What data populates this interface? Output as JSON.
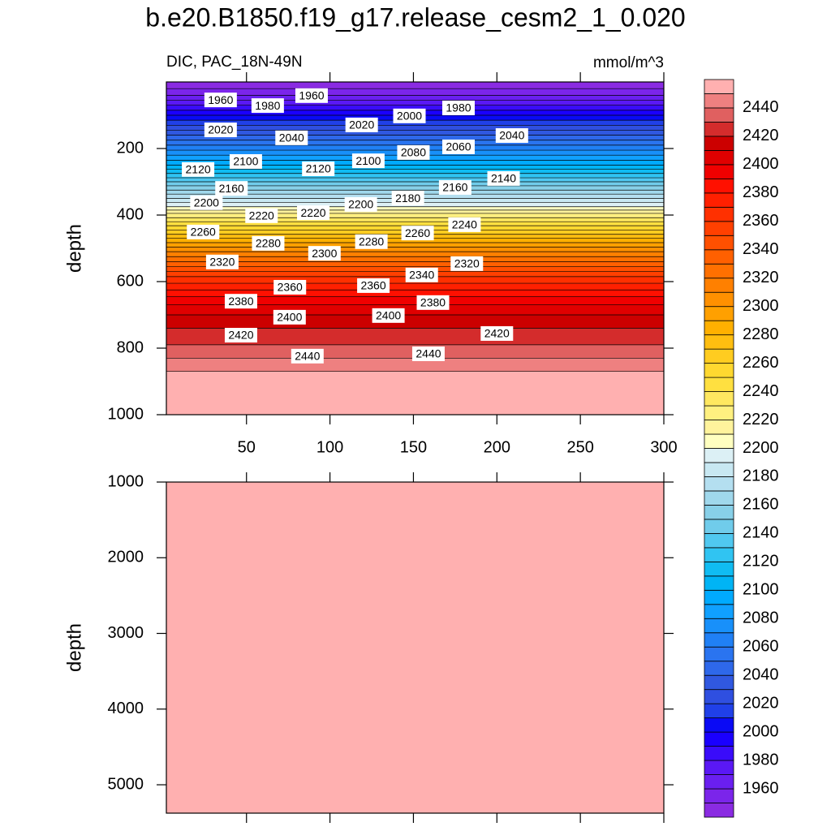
{
  "chart_data": {
    "type": "contour",
    "title": "b.e20.B1850.f19_g17.release_cesm2_1_0.020",
    "subtitle": "DIC, PAC_18N-49N",
    "units": "mmol/m^3",
    "xlim": [
      2,
      300
    ],
    "xticks": [
      50,
      100,
      150,
      200,
      250,
      300
    ],
    "levels": [
      1950,
      1960,
      1970,
      1980,
      1990,
      2000,
      2010,
      2020,
      2030,
      2040,
      2050,
      2060,
      2070,
      2080,
      2090,
      2100,
      2110,
      2120,
      2130,
      2140,
      2150,
      2160,
      2170,
      2180,
      2190,
      2200,
      2210,
      2220,
      2230,
      2240,
      2250,
      2260,
      2270,
      2280,
      2290,
      2300,
      2310,
      2320,
      2330,
      2340,
      2350,
      2360,
      2370,
      2380,
      2390,
      2400,
      2410,
      2420,
      2430,
      2440,
      2450
    ],
    "colors": [
      "#8a2be2",
      "#7b25ea",
      "#6a1ff0",
      "#5a18f5",
      "#3a0cfa",
      "#1a00ff",
      "#0a0af5",
      "#2040e8",
      "#2f4fe0",
      "#3058e0",
      "#2e68ea",
      "#2a74f0",
      "#2080f5",
      "#1890fa",
      "#10a0ff",
      "#00aaff",
      "#00b4f5",
      "#10bcf2",
      "#30c4f2",
      "#50c8f0",
      "#70cceb",
      "#88d0e8",
      "#a0d8ec",
      "#b4dff0",
      "#c8e8f2",
      "#dcf0f5",
      "#ffffc0",
      "#fff39c",
      "#fff080",
      "#ffe860",
      "#ffe040",
      "#ffd830",
      "#ffcc20",
      "#ffbe10",
      "#ffb000",
      "#ffa000",
      "#ff9000",
      "#ff8000",
      "#ff7000",
      "#ff6000",
      "#ff5000",
      "#ff4000",
      "#ff3000",
      "#ff2000",
      "#ff1000",
      "#f00000",
      "#e00000",
      "#cc0000",
      "#d42c2c",
      "#e06060",
      "#ee8080",
      "#ffb0b0"
    ],
    "colorbar": {
      "lim": [
        1940,
        2460
      ],
      "ticks": [
        1960,
        1980,
        2000,
        2020,
        2040,
        2060,
        2080,
        2100,
        2120,
        2140,
        2160,
        2180,
        2200,
        2220,
        2240,
        2260,
        2280,
        2300,
        2320,
        2340,
        2360,
        2380,
        2400,
        2420,
        2440
      ]
    },
    "panels": [
      {
        "ylabel": "depth",
        "ylim": [
          0,
          1000
        ],
        "yticks": [
          200,
          400,
          600,
          800,
          1000
        ],
        "level_depths": [
          20,
          40,
          55,
          70,
          85,
          100,
          115,
          130,
          145,
          160,
          175,
          190,
          205,
          220,
          235,
          250,
          262,
          275,
          288,
          300,
          312,
          325,
          337,
          350,
          362,
          375,
          385,
          395,
          408,
          420,
          432,
          445,
          458,
          470,
          483,
          496,
          510,
          525,
          540,
          555,
          570,
          585,
          605,
          625,
          645,
          670,
          700,
          740,
          790,
          830,
          870
        ],
        "contour_labels": [
          {
            "level": 1960,
            "x": 34.5,
            "depth": 54
          },
          {
            "level": 1980,
            "x": 62.7,
            "depth": 71
          },
          {
            "level": 1960,
            "x": 89,
            "depth": 41
          },
          {
            "level": 2020,
            "x": 34.5,
            "depth": 144
          },
          {
            "level": 2040,
            "x": 77,
            "depth": 168
          },
          {
            "level": 2020,
            "x": 119,
            "depth": 129
          },
          {
            "level": 2000,
            "x": 147.6,
            "depth": 102
          },
          {
            "level": 1980,
            "x": 177,
            "depth": 78
          },
          {
            "level": 2040,
            "x": 209,
            "depth": 161
          },
          {
            "level": 2060,
            "x": 177,
            "depth": 195
          },
          {
            "level": 2080,
            "x": 150,
            "depth": 212
          },
          {
            "level": 2100,
            "x": 123,
            "depth": 237
          },
          {
            "level": 2120,
            "x": 93,
            "depth": 261
          },
          {
            "level": 2100,
            "x": 49.6,
            "depth": 239
          },
          {
            "level": 2120,
            "x": 21,
            "depth": 263
          },
          {
            "level": 2160,
            "x": 41,
            "depth": 320
          },
          {
            "level": 2200,
            "x": 26,
            "depth": 363
          },
          {
            "level": 2220,
            "x": 59,
            "depth": 402
          },
          {
            "level": 2220,
            "x": 90,
            "depth": 393
          },
          {
            "level": 2200,
            "x": 118.5,
            "depth": 368
          },
          {
            "level": 2180,
            "x": 146.7,
            "depth": 349
          },
          {
            "level": 2160,
            "x": 175,
            "depth": 317
          },
          {
            "level": 2140,
            "x": 204,
            "depth": 290
          },
          {
            "level": 2240,
            "x": 180.6,
            "depth": 429
          },
          {
            "level": 2260,
            "x": 152.5,
            "depth": 454
          },
          {
            "level": 2280,
            "x": 124.8,
            "depth": 480
          },
          {
            "level": 2300,
            "x": 96.7,
            "depth": 515
          },
          {
            "level": 2280,
            "x": 63,
            "depth": 485
          },
          {
            "level": 2260,
            "x": 24,
            "depth": 451
          },
          {
            "level": 2320,
            "x": 35.5,
            "depth": 541
          },
          {
            "level": 2320,
            "x": 182,
            "depth": 546
          },
          {
            "level": 2340,
            "x": 155,
            "depth": 580
          },
          {
            "level": 2360,
            "x": 126,
            "depth": 612
          },
          {
            "level": 2360,
            "x": 76,
            "depth": 617
          },
          {
            "level": 2380,
            "x": 46.7,
            "depth": 659
          },
          {
            "level": 2400,
            "x": 75.8,
            "depth": 707
          },
          {
            "level": 2400,
            "x": 135,
            "depth": 702
          },
          {
            "level": 2380,
            "x": 161.7,
            "depth": 663
          },
          {
            "level": 2420,
            "x": 46.7,
            "depth": 761
          },
          {
            "level": 2420,
            "x": 200,
            "depth": 756
          },
          {
            "level": 2440,
            "x": 86.5,
            "depth": 824
          },
          {
            "level": 2440,
            "x": 159,
            "depth": 817
          }
        ]
      },
      {
        "ylabel": "depth",
        "ylim": [
          1000,
          5375
        ],
        "yticks": [
          1000,
          2000,
          3000,
          4000,
          5000
        ]
      }
    ]
  }
}
